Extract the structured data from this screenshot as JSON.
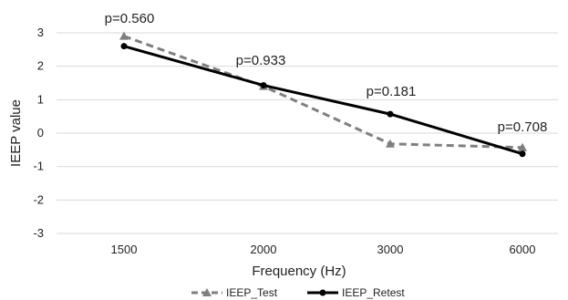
{
  "chart_data": {
    "type": "line",
    "categories": [
      "1500",
      "2000",
      "3000",
      "6000"
    ],
    "series": [
      {
        "name": "IEEP_Test",
        "values": [
          2.9,
          1.4,
          -0.32,
          -0.43
        ],
        "color": "#7f7f7f",
        "line_style": "dashed",
        "marker": "triangle"
      },
      {
        "name": "IEEP_Retest",
        "values": [
          2.6,
          1.43,
          0.57,
          -0.62
        ],
        "color": "#000000",
        "line_style": "solid",
        "marker": "circle"
      }
    ],
    "annotations": [
      "p=0.560",
      "p=0.933",
      "p=0.181",
      "p=0.708"
    ],
    "xlabel": "Frequency (Hz)",
    "ylabel": "IEEP value",
    "yticks": [
      "3",
      "2",
      "1",
      "0",
      "-1",
      "-2",
      "-3"
    ],
    "ylim": [
      -3,
      3
    ],
    "grid": true,
    "legend": "bottom"
  }
}
